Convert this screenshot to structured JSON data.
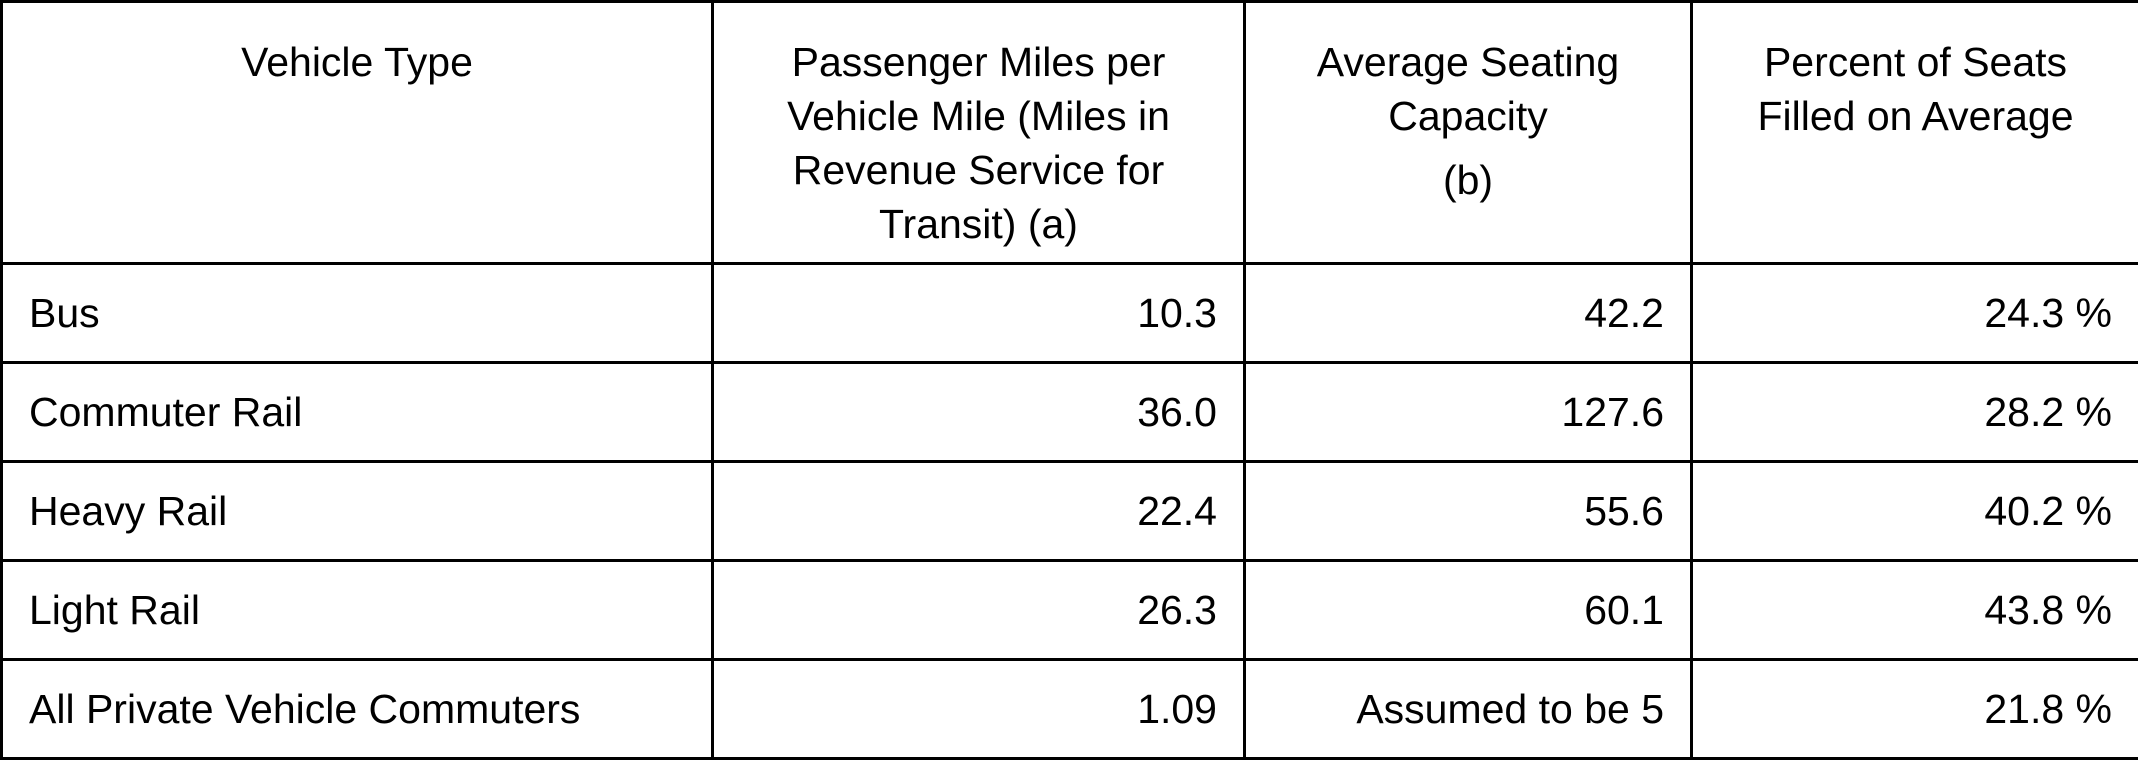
{
  "table": {
    "headers": [
      {
        "lines": [
          "Vehicle Type"
        ],
        "note": ""
      },
      {
        "lines": [
          "Passenger Miles per",
          "Vehicle Mile (Miles in",
          "Revenue Service for",
          "Transit) (a)"
        ],
        "note": ""
      },
      {
        "lines": [
          "Average Seating",
          "Capacity"
        ],
        "note": "(b)"
      },
      {
        "lines": [
          "Percent of Seats",
          "Filled on Average"
        ],
        "note": ""
      }
    ],
    "rows": [
      {
        "vehicle_type": "Bus",
        "passenger_miles_per_vehicle_mile": "10.3",
        "average_seating_capacity": "42.2",
        "percent_seats_filled": "24.3 %"
      },
      {
        "vehicle_type": "Commuter Rail",
        "passenger_miles_per_vehicle_mile": "36.0",
        "average_seating_capacity": "127.6",
        "percent_seats_filled": "28.2 %"
      },
      {
        "vehicle_type": "Heavy Rail",
        "passenger_miles_per_vehicle_mile": "22.4",
        "average_seating_capacity": "55.6",
        "percent_seats_filled": "40.2 %"
      },
      {
        "vehicle_type": "Light Rail",
        "passenger_miles_per_vehicle_mile": "26.3",
        "average_seating_capacity": "60.1",
        "percent_seats_filled": "43.8 %"
      },
      {
        "vehicle_type": "All Private Vehicle Commuters",
        "passenger_miles_per_vehicle_mile": "1.09",
        "average_seating_capacity": "Assumed to be 5",
        "percent_seats_filled": "21.8 %"
      }
    ]
  }
}
